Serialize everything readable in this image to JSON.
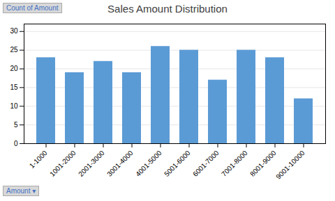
{
  "chart_data": {
    "type": "bar",
    "title": "Sales Amount Distribution",
    "categories": [
      "1-1000",
      "1001-2000",
      "2001-3000",
      "3001-4000",
      "4001-5000",
      "5001-6000",
      "6001-7000",
      "7001-8000",
      "8001-9000",
      "9001-10000"
    ],
    "values": [
      23,
      19,
      22,
      19,
      26,
      25,
      17,
      25,
      23,
      12
    ],
    "color": "#5B9BD5",
    "ylim": [
      0,
      32
    ],
    "yticks": [
      0,
      5,
      10,
      15,
      20,
      25,
      30
    ],
    "grid": true,
    "ylabel": "Count of Amount",
    "xlabel": "Amount ▾"
  }
}
